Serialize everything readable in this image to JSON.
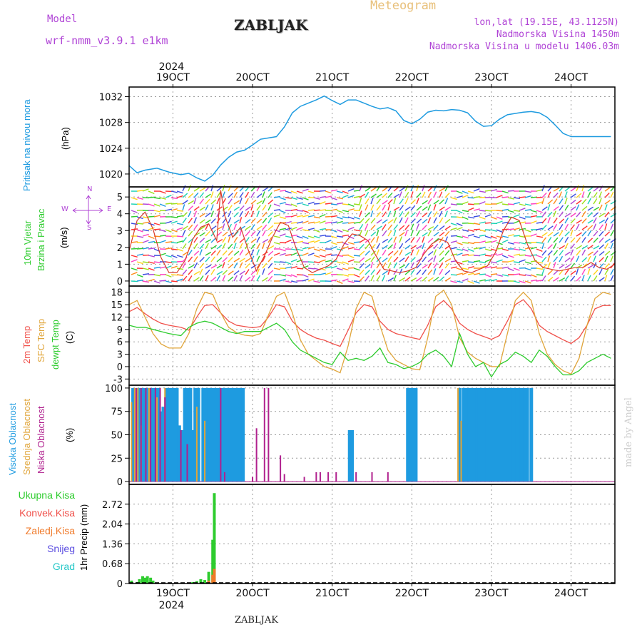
{
  "header": {
    "model_label": "Model",
    "model_name": "wrf-nmm_v3.9.1 e1km",
    "station": "ZABLJAK",
    "product": "Meteogram",
    "coords": "lon,lat (19.15E, 43.1125N)",
    "elevation": "Nadmorska Visina 1450m",
    "model_elevation": "Nadmorska Visina u modelu 1406.03m"
  },
  "footer": {
    "station": "ZABLJAK",
    "watermark": "made by Angel"
  },
  "time_axis": {
    "year": "2024",
    "day_labels": [
      "19OCT",
      "20OCT",
      "21OCT",
      "22OCT",
      "23OCT",
      "24OCT"
    ],
    "day_positions": [
      0,
      1,
      2,
      3,
      4,
      5
    ],
    "range_days": [
      -0.55,
      5.55
    ]
  },
  "panel_labels": {
    "pressure": [
      "Pritisak na nivou mora"
    ],
    "pressure_unit": "(hPa)",
    "wind": [
      "10m Vjetar",
      "Brzina i Pravac"
    ],
    "wind_unit": "(m/s)",
    "wind_compass": {
      "n": "N",
      "s": "S",
      "w": "W",
      "e": "E"
    },
    "temp": [
      "2m Temp",
      "SFC Temp",
      "dewpt Temp"
    ],
    "temp_unit": "(C)",
    "cloud": [
      "Visoka Oblacnost",
      "Srednja Oblacnost",
      "Niska Oblacnost"
    ],
    "cloud_unit": "(%)",
    "precip_legend": [
      "Ukupna Kisa",
      "Konvek.Kisa",
      "Zaledj.Kisa",
      "Snijeg",
      "Grad"
    ],
    "precip_unit": "1hr Precip (mm)"
  },
  "colors": {
    "pressure": "#1e9be0",
    "t2m": "#f0504a",
    "sfc": "#e0a53a",
    "dewpt": "#2ecc2e",
    "cloud_high": "#1e9be0",
    "cloud_mid": "#e0a53a",
    "cloud_low": "#b0208e",
    "rain_total": "#2ecc2e",
    "rain_conv": "#f0504a",
    "rain_frz": "#f07a2a",
    "snow": "#5a4ce0",
    "hail": "#28c8c8",
    "violet_text": "#b044d6"
  },
  "chart_data": [
    {
      "type": "line",
      "panel": "pressure",
      "ylabel": "(hPa)",
      "yticks": [
        1020,
        1024,
        1028,
        1032
      ],
      "ylim": [
        1018,
        1033.5
      ],
      "x": [
        -0.55,
        -0.45,
        -0.35,
        -0.2,
        -0.05,
        0.1,
        0.2,
        0.3,
        0.4,
        0.5,
        0.6,
        0.7,
        0.8,
        0.9,
        1.0,
        1.1,
        1.2,
        1.3,
        1.4,
        1.5,
        1.6,
        1.7,
        1.8,
        1.9,
        2.0,
        2.1,
        2.2,
        2.3,
        2.4,
        2.5,
        2.6,
        2.7,
        2.8,
        2.9,
        3.0,
        3.1,
        3.2,
        3.3,
        3.4,
        3.5,
        3.6,
        3.7,
        3.8,
        3.9,
        4.0,
        4.1,
        4.2,
        4.3,
        4.4,
        4.5,
        4.6,
        4.7,
        4.8,
        4.9,
        5.0,
        5.1,
        5.2,
        5.3,
        5.4,
        5.5
      ],
      "values": [
        1021.3,
        1020.2,
        1020.6,
        1020.9,
        1020.3,
        1019.9,
        1020.1,
        1019.4,
        1018.9,
        1019.8,
        1021.4,
        1022.6,
        1023.4,
        1023.7,
        1024.5,
        1025.4,
        1025.6,
        1025.8,
        1027.3,
        1029.5,
        1030.5,
        1031.0,
        1031.5,
        1032.1,
        1031.4,
        1030.8,
        1031.5,
        1031.5,
        1031.0,
        1030.5,
        1030.1,
        1030.3,
        1029.8,
        1028.3,
        1027.8,
        1028.5,
        1029.6,
        1029.9,
        1029.8,
        1030.0,
        1029.9,
        1029.5,
        1028.2,
        1027.4,
        1027.5,
        1028.5,
        1029.2,
        1029.4,
        1029.6,
        1029.7,
        1029.5,
        1028.8,
        1027.6,
        1026.3,
        1025.8,
        1025.8,
        1025.8,
        1025.8,
        1025.8,
        1025.8
      ]
    },
    {
      "type": "line",
      "panel": "wind",
      "ylabel": "(m/s)",
      "yticks": [
        0,
        1,
        2,
        3,
        4,
        5
      ],
      "ylim": [
        -0.3,
        5.6
      ],
      "series": [
        {
          "x": [
            -0.55,
            -0.45,
            -0.35,
            -0.25,
            -0.15,
            -0.05,
            0.05,
            0.15,
            0.25,
            0.35,
            0.45,
            0.55,
            0.6,
            0.65,
            0.75,
            0.85,
            0.95,
            1.05,
            1.15,
            1.25,
            1.35,
            1.45,
            1.55,
            1.65,
            1.75,
            1.85,
            1.95,
            2.05,
            2.15,
            2.25,
            2.35,
            2.45,
            2.55,
            2.65,
            2.75,
            2.85,
            2.95,
            3.05,
            3.15,
            3.25,
            3.35,
            3.45,
            3.55,
            3.65,
            3.75,
            3.85,
            3.95,
            4.05,
            4.15,
            4.25,
            4.35,
            4.45,
            4.55,
            4.65,
            4.75,
            4.85,
            4.95,
            5.05,
            5.15,
            5.25,
            5.35,
            5.45,
            5.55
          ],
          "values": [
            1.8,
            3.6,
            4.1,
            3.1,
            1.4,
            0.5,
            0.5,
            1.2,
            2.5,
            3.2,
            3.4,
            2.4,
            5.4,
            3.9,
            2.6,
            3.2,
            1.8,
            0.6,
            1.5,
            2.6,
            3.5,
            3.3,
            1.9,
            0.8,
            0.5,
            0.7,
            0.9,
            1.3,
            2.2,
            2.8,
            2.7,
            2.4,
            1.5,
            0.7,
            0.6,
            0.5,
            0.6,
            0.8,
            1.6,
            2.2,
            2.5,
            2.3,
            1.2,
            0.6,
            0.5,
            0.7,
            0.9,
            1.7,
            3.0,
            3.8,
            3.6,
            2.2,
            1.2,
            0.8,
            0.7,
            0.6,
            0.7,
            0.8,
            0.8,
            1.1,
            0.8,
            0.7,
            1.0
          ]
        }
      ]
    },
    {
      "type": "line",
      "panel": "temperature",
      "ylabel": "(C)",
      "yticks": [
        -3,
        0,
        3,
        6,
        9,
        12,
        15,
        18
      ],
      "ylim": [
        -4.5,
        19.5
      ],
      "series": [
        {
          "name": "2m Temp",
          "x": [
            -0.55,
            -0.45,
            -0.35,
            -0.25,
            -0.15,
            -0.05,
            0.1,
            0.2,
            0.3,
            0.4,
            0.5,
            0.6,
            0.7,
            0.8,
            0.9,
            1.0,
            1.1,
            1.2,
            1.3,
            1.4,
            1.5,
            1.6,
            1.7,
            1.8,
            1.9,
            2.0,
            2.1,
            2.2,
            2.3,
            2.4,
            2.5,
            2.6,
            2.7,
            2.8,
            2.9,
            3.0,
            3.1,
            3.2,
            3.3,
            3.4,
            3.5,
            3.6,
            3.7,
            3.8,
            3.9,
            4.0,
            4.1,
            4.2,
            4.3,
            4.4,
            4.5,
            4.6,
            4.7,
            4.8,
            4.9,
            5.0,
            5.1,
            5.2,
            5.3,
            5.4,
            5.5
          ],
          "values": [
            13.3,
            14.3,
            12.8,
            11.5,
            10.5,
            10.0,
            9.5,
            8.8,
            12.0,
            14.8,
            15.0,
            13.0,
            11.0,
            10.0,
            9.7,
            9.4,
            9.7,
            12.0,
            15.0,
            14.5,
            11.0,
            9.0,
            7.8,
            6.9,
            6.4,
            5.6,
            4.9,
            8.8,
            13.0,
            15.0,
            14.5,
            11.0,
            9.0,
            8.0,
            7.5,
            7.0,
            6.6,
            10.0,
            14.5,
            16.0,
            14.0,
            10.5,
            9.0,
            8.0,
            7.3,
            6.6,
            7.5,
            11.0,
            15.0,
            16.2,
            14.0,
            10.0,
            8.5,
            7.5,
            6.5,
            5.6,
            7.0,
            10.0,
            14.0,
            14.8,
            14.8
          ]
        },
        {
          "name": "SFC Temp",
          "x": [
            -0.55,
            -0.45,
            -0.35,
            -0.25,
            -0.15,
            -0.05,
            0.1,
            0.2,
            0.3,
            0.4,
            0.5,
            0.6,
            0.7,
            0.8,
            0.9,
            1.0,
            1.1,
            1.2,
            1.3,
            1.4,
            1.5,
            1.6,
            1.7,
            1.8,
            1.9,
            2.0,
            2.1,
            2.2,
            2.3,
            2.4,
            2.5,
            2.6,
            2.7,
            2.8,
            2.9,
            3.0,
            3.1,
            3.2,
            3.3,
            3.4,
            3.5,
            3.6,
            3.7,
            3.8,
            3.9,
            4.0,
            4.1,
            4.2,
            4.3,
            4.4,
            4.5,
            4.6,
            4.7,
            4.8,
            4.9,
            5.0,
            5.1,
            5.2,
            5.3,
            5.4,
            5.5
          ],
          "values": [
            15.0,
            16.0,
            12.0,
            8.0,
            5.5,
            4.5,
            4.5,
            8.0,
            14.0,
            18.0,
            17.5,
            13.0,
            9.5,
            8.2,
            7.6,
            7.4,
            8.0,
            12.5,
            17.0,
            18.0,
            13.0,
            6.5,
            3.0,
            1.5,
            0.0,
            -0.6,
            -1.5,
            5.0,
            14.0,
            18.0,
            17.0,
            10.0,
            4.0,
            1.5,
            0.5,
            -0.5,
            -0.8,
            7.0,
            17.0,
            18.5,
            15.0,
            7.0,
            3.5,
            2.0,
            1.0,
            0.0,
            0.0,
            8.0,
            16.0,
            18.0,
            16.0,
            8.0,
            3.0,
            0.5,
            -1.0,
            -1.8,
            2.0,
            10.0,
            16.5,
            18.0,
            17.5
          ]
        },
        {
          "name": "dewpt Temp",
          "x": [
            -0.55,
            -0.45,
            -0.35,
            -0.25,
            -0.15,
            -0.05,
            0.1,
            0.2,
            0.3,
            0.4,
            0.5,
            0.6,
            0.7,
            0.8,
            0.9,
            1.0,
            1.1,
            1.2,
            1.3,
            1.4,
            1.5,
            1.6,
            1.7,
            1.8,
            1.9,
            2.0,
            2.1,
            2.2,
            2.3,
            2.4,
            2.5,
            2.6,
            2.7,
            2.8,
            2.9,
            3.0,
            3.1,
            3.2,
            3.3,
            3.4,
            3.5,
            3.6,
            3.7,
            3.8,
            3.9,
            4.0,
            4.1,
            4.2,
            4.3,
            4.4,
            4.5,
            4.6,
            4.7,
            4.8,
            4.9,
            5.0,
            5.1,
            5.2,
            5.3,
            5.4,
            5.5
          ],
          "values": [
            10.0,
            9.5,
            9.5,
            9.0,
            8.5,
            8.0,
            7.5,
            9.5,
            10.5,
            11.0,
            10.5,
            9.5,
            8.5,
            8.0,
            8.5,
            8.5,
            8.5,
            9.5,
            10.5,
            9.0,
            6.0,
            4.0,
            3.0,
            2.0,
            1.0,
            0.5,
            3.5,
            1.5,
            2.0,
            1.5,
            2.5,
            4.5,
            1.0,
            0.5,
            -0.5,
            0.0,
            1.0,
            3.0,
            4.0,
            2.5,
            0.0,
            8.0,
            3.0,
            0.0,
            1.0,
            -2.5,
            0.5,
            1.5,
            3.5,
            2.5,
            1.0,
            4.0,
            2.5,
            0.0,
            -2.0,
            -2.0,
            -1.0,
            1.0,
            2.0,
            3.0,
            2.0
          ]
        }
      ]
    },
    {
      "type": "bar",
      "panel": "cloud",
      "ylabel": "(%)",
      "yticks": [
        0,
        25,
        50,
        75,
        100
      ],
      "ylim": [
        -3,
        103
      ],
      "series": [
        {
          "name": "Visoka Oblacnost",
          "x": [
            -0.5,
            -0.45,
            -0.42,
            -0.38,
            -0.35,
            -0.32,
            -0.28,
            -0.25,
            -0.22,
            -0.18,
            -0.15,
            -0.12,
            -0.08,
            -0.05,
            -0.02,
            0.02,
            0.05,
            0.08,
            0.12,
            0.15,
            0.18,
            0.22,
            0.25,
            0.28,
            0.32,
            0.38,
            0.42,
            0.45,
            0.48,
            0.52,
            0.55,
            0.58,
            0.62,
            0.65,
            0.68,
            0.72,
            0.75,
            0.78,
            0.82,
            0.85,
            0.88,
            2.22,
            2.25,
            2.95,
            2.98,
            3.02,
            3.05,
            3.6,
            3.65,
            3.68,
            3.72,
            3.75,
            3.78,
            3.82,
            3.85,
            3.88,
            3.92,
            3.95,
            3.98,
            4.02,
            4.05,
            4.08,
            4.12,
            4.15,
            4.18,
            4.22,
            4.25,
            4.28,
            4.32,
            4.35,
            4.38,
            4.42,
            4.45,
            4.5
          ],
          "values": [
            100,
            100,
            100,
            100,
            100,
            100,
            100,
            100,
            100,
            100,
            75,
            80,
            100,
            100,
            100,
            100,
            100,
            60,
            55,
            100,
            100,
            100,
            55,
            100,
            100,
            100,
            100,
            100,
            100,
            100,
            100,
            100,
            100,
            100,
            100,
            100,
            100,
            100,
            100,
            100,
            100,
            55,
            55,
            100,
            100,
            100,
            100,
            100,
            100,
            100,
            100,
            100,
            100,
            100,
            100,
            100,
            100,
            100,
            100,
            100,
            100,
            100,
            100,
            100,
            100,
            100,
            100,
            100,
            100,
            100,
            100,
            100,
            100,
            100
          ]
        },
        {
          "name": "Srednja Oblacnost",
          "x": [
            -0.52,
            -0.48,
            -0.44,
            -0.4,
            -0.3,
            -0.2,
            -0.1,
            0.3,
            0.4,
            3.58,
            3.62
          ],
          "values": [
            85,
            100,
            100,
            60,
            100,
            90,
            100,
            80,
            65,
            100,
            65
          ]
        },
        {
          "name": "Niska Oblacnost",
          "x": [
            -0.46,
            -0.4,
            -0.34,
            -0.28,
            -0.22,
            -0.16,
            -0.1,
            0.1,
            0.18,
            0.6,
            0.65,
            1.0,
            1.05,
            1.15,
            1.2,
            1.35,
            1.4,
            1.65,
            1.8,
            1.85,
            1.95,
            2.05,
            2.3,
            2.5,
            2.7
          ],
          "values": [
            100,
            100,
            100,
            100,
            100,
            100,
            90,
            55,
            40,
            100,
            10,
            5,
            57,
            100,
            100,
            28,
            8,
            5,
            10,
            10,
            10,
            10,
            10,
            10,
            10
          ]
        }
      ]
    },
    {
      "type": "bar",
      "panel": "precip",
      "ylabel": "1hr Precip (mm)",
      "yticks": [
        0,
        0.68,
        1.36,
        2.04,
        2.72
      ],
      "ylim": [
        0,
        3.4
      ],
      "series": [
        {
          "name": "Ukupna Kisa",
          "x": [
            -0.52,
            -0.45,
            -0.42,
            -0.38,
            -0.35,
            -0.32,
            -0.28,
            -0.25,
            0.25,
            0.3,
            0.35,
            0.4,
            0.45,
            0.5,
            0.52
          ],
          "values": [
            0.1,
            0.05,
            0.15,
            0.25,
            0.2,
            0.25,
            0.2,
            0.1,
            0.05,
            0.08,
            0.15,
            0.12,
            0.4,
            1.5,
            3.1
          ]
        },
        {
          "name": "Zaledj.Kisa",
          "x": [
            0.45,
            0.5,
            0.52
          ],
          "values": [
            0.1,
            0.3,
            0.5
          ]
        }
      ]
    }
  ]
}
